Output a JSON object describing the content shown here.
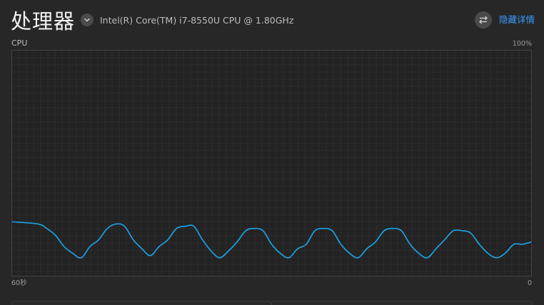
{
  "header": {
    "title": "处理器",
    "cpu_model": "Intel(R) Core(TM) i7-8550U CPU @ 1.80GHz",
    "hide_details_label": "隐藏详情",
    "icons": {
      "dropdown": "chevron-down-icon",
      "swap": "swap-icon"
    }
  },
  "graph": {
    "label": "CPU",
    "y_max_label": "100%",
    "x_left_label": "60秒",
    "x_right_label": "0"
  },
  "colors": {
    "accent": "#3a9bff",
    "line": "#1ba1e2",
    "background": "#272727"
  },
  "chart_data": {
    "type": "line",
    "title": "",
    "xlabel": "",
    "ylabel": "",
    "x_unit": "seconds ago",
    "xlim": [
      60,
      0
    ],
    "ylim": [
      0,
      100
    ],
    "grid": true,
    "series": [
      {
        "x": [
          60,
          57,
          56,
          55,
          54,
          53,
          52,
          51,
          50,
          49,
          48,
          47,
          46,
          45,
          44,
          43,
          42,
          41,
          40,
          39,
          38,
          37,
          36,
          35,
          34,
          33,
          32,
          31,
          30,
          29,
          28,
          27,
          26,
          25,
          24,
          23,
          22,
          21,
          20,
          19,
          18,
          17,
          16,
          15,
          14,
          13,
          12,
          11,
          10,
          9,
          8,
          7,
          6,
          5,
          4,
          3,
          2,
          1,
          0
        ],
        "values": [
          24,
          23,
          21,
          18,
          13,
          10,
          8,
          13,
          16,
          21,
          23,
          22,
          16,
          12,
          9,
          13,
          16,
          21,
          22,
          22,
          16,
          11,
          8,
          11,
          15,
          20,
          21,
          20,
          14,
          10,
          8,
          12,
          14,
          20,
          21,
          20,
          14,
          10,
          8,
          12,
          15,
          20,
          21,
          20,
          14,
          10,
          8,
          12,
          16,
          20,
          20,
          19,
          14,
          10,
          8,
          10,
          14,
          14,
          15
        ]
      }
    ]
  }
}
